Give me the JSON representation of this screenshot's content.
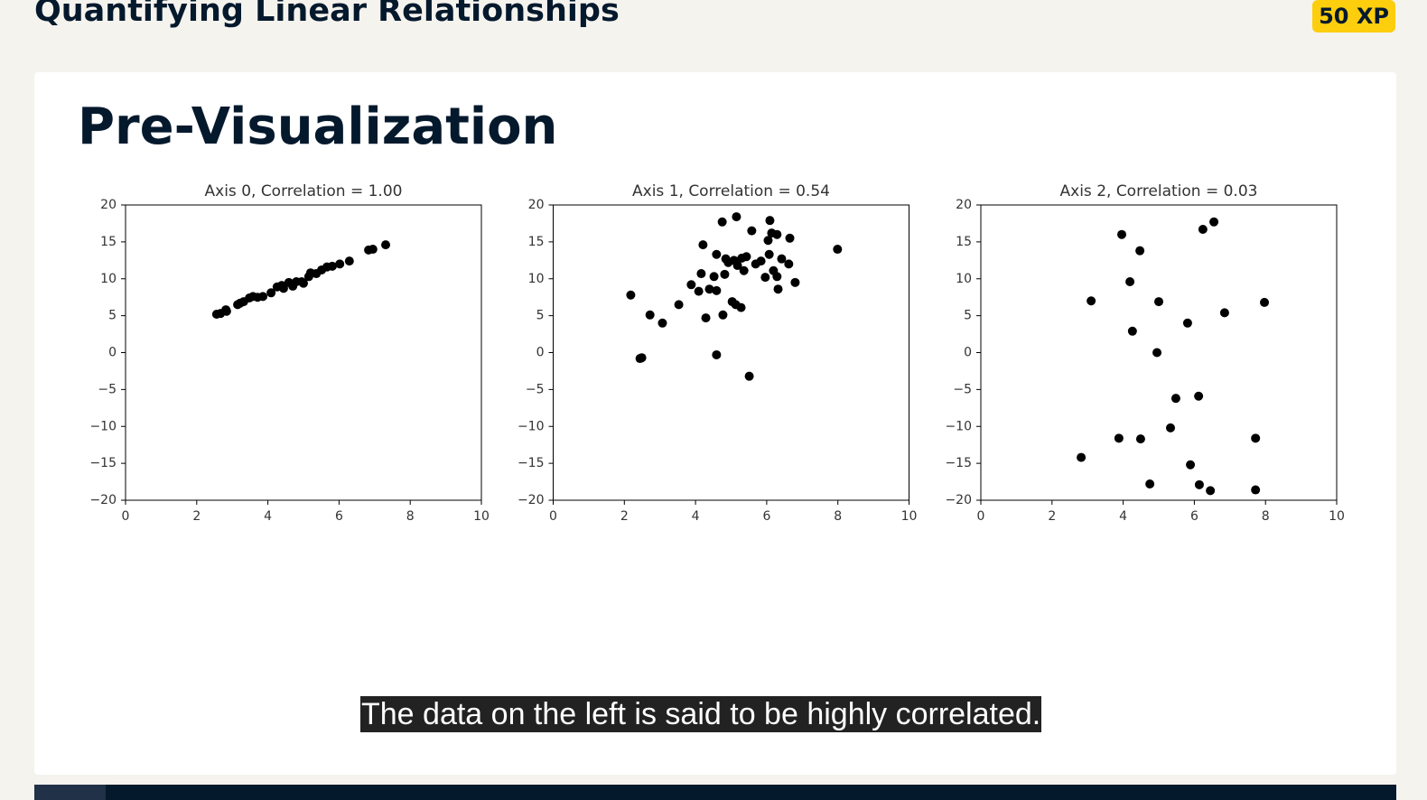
{
  "header": {
    "title": "Quantifying Linear Relationships",
    "xp": "50 XP"
  },
  "slide": {
    "title": "Pre-Visualization",
    "caption": "The data on the left is said to be highly correlated."
  },
  "chart_data": [
    {
      "type": "scatter",
      "title": "Axis 0, Correlation = 1.00",
      "color": "#000000",
      "x": [
        2.56,
        2.67,
        2.82,
        2.84,
        3.15,
        3.22,
        3.32,
        3.48,
        3.58,
        3.71,
        3.86,
        4.09,
        4.26,
        4.39,
        4.44,
        4.59,
        4.7,
        4.8,
        4.95,
        5.0,
        5.15,
        5.2,
        5.36,
        5.51,
        5.66,
        5.81,
        6.02,
        6.29,
        6.83,
        6.95,
        7.31
      ],
      "values": [
        5.2,
        5.3,
        5.8,
        5.6,
        6.5,
        6.7,
        6.9,
        7.4,
        7.6,
        7.5,
        7.6,
        8.1,
        8.9,
        9.1,
        8.7,
        9.5,
        9.0,
        9.6,
        9.6,
        9.4,
        10.3,
        10.8,
        10.7,
        11.2,
        11.6,
        11.7,
        12.0,
        12.4,
        13.9,
        14.0,
        14.6
      ],
      "xlim": [
        0,
        10
      ],
      "ylim": [
        -20,
        20
      ],
      "xticks": [
        0,
        2,
        4,
        6,
        8,
        10
      ],
      "yticks": [
        {
          "value": -20,
          "label": "−20"
        },
        {
          "value": -15,
          "label": "−15"
        },
        {
          "value": -10,
          "label": "−10"
        },
        {
          "value": -5,
          "label": "−5"
        },
        0,
        5,
        10,
        15,
        20
      ]
    },
    {
      "type": "scatter",
      "title": "Axis 1, Correlation = 0.54",
      "color": "#000000",
      "x": [
        2.18,
        2.44,
        2.49,
        2.72,
        3.07,
        3.53,
        3.88,
        4.09,
        4.16,
        4.21,
        4.29,
        4.39,
        4.52,
        4.59,
        4.59,
        4.59,
        4.75,
        4.77,
        4.82,
        4.85,
        4.92,
        5.03,
        5.08,
        5.13,
        5.15,
        5.18,
        5.28,
        5.3,
        5.36,
        5.43,
        5.51,
        5.58,
        5.69,
        5.84,
        5.96,
        6.04,
        6.07,
        6.09,
        6.14,
        6.19,
        6.29,
        6.29,
        6.32,
        6.42,
        6.62,
        6.65,
        6.8,
        7.99
      ],
      "values": [
        7.8,
        -0.8,
        -0.7,
        5.1,
        4.0,
        6.5,
        9.2,
        8.3,
        10.7,
        14.6,
        4.7,
        8.6,
        10.3,
        8.4,
        13.3,
        -0.3,
        17.7,
        5.1,
        10.6,
        12.7,
        12.2,
        6.9,
        12.5,
        6.5,
        18.4,
        11.8,
        6.1,
        12.8,
        11.1,
        13.0,
        -3.2,
        16.5,
        12.0,
        12.4,
        10.2,
        15.2,
        13.3,
        17.9,
        16.2,
        11.1,
        16.0,
        10.3,
        8.6,
        12.7,
        12.0,
        15.5,
        9.5,
        14.0
      ],
      "xlim": [
        0,
        10
      ],
      "ylim": [
        -20,
        20
      ],
      "xticks": [
        0,
        2,
        4,
        6,
        8,
        10
      ],
      "yticks": [
        {
          "value": -20,
          "label": "−20"
        },
        {
          "value": -15,
          "label": "−15"
        },
        {
          "value": -10,
          "label": "−10"
        },
        {
          "value": -5,
          "label": "−5"
        },
        0,
        5,
        10,
        15,
        20
      ]
    },
    {
      "type": "scatter",
      "title": "Axis 2, Correlation = 0.03",
      "color": "#000000",
      "x": [
        2.82,
        3.1,
        3.88,
        3.96,
        4.19,
        4.26,
        4.47,
        4.49,
        4.75,
        4.95,
        5.0,
        5.33,
        5.48,
        5.81,
        5.89,
        6.12,
        6.14,
        6.24,
        6.45,
        6.55,
        6.85,
        7.72,
        7.72,
        7.97
      ],
      "values": [
        -14.2,
        7.0,
        -11.6,
        16.0,
        9.6,
        2.9,
        13.8,
        -11.7,
        -17.8,
        0.0,
        6.9,
        -10.2,
        -6.2,
        4.0,
        -15.2,
        -5.9,
        -17.9,
        16.7,
        -18.7,
        17.7,
        5.4,
        -11.6,
        -18.6,
        6.8
      ],
      "xlim": [
        0,
        10
      ],
      "ylim": [
        -20,
        20
      ],
      "xticks": [
        0,
        2,
        4,
        6,
        8,
        10
      ],
      "yticks": [
        {
          "value": -20,
          "label": "−20"
        },
        {
          "value": -15,
          "label": "−15"
        },
        {
          "value": -10,
          "label": "−10"
        },
        {
          "value": -5,
          "label": "−5"
        },
        0,
        5,
        10,
        15,
        20
      ]
    }
  ]
}
